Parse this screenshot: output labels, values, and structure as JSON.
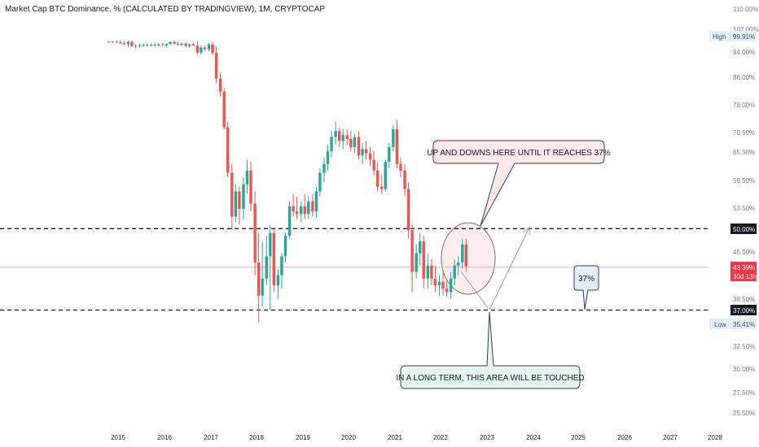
{
  "chart_title": "Market Cap BTC Dominance, % (CALCULATED BY TRADINGVIEW), 1M, CRYPTOCAP",
  "colors": {
    "up": "#26a69a",
    "down": "#ef5350",
    "last_price": "#f23645",
    "axis_text": "#787b86",
    "note_pink_bg": "#fde8ea",
    "note_green_bg": "#e7f5ef",
    "note_blue_bg": "#e3effc"
  },
  "price_axis": {
    "labels": [
      "110.00%",
      "102.00%",
      "94.00%",
      "86.00%",
      "78.00%",
      "70.50%",
      "65.50%",
      "59.50%",
      "53.50%",
      "45.50%",
      "38.50%",
      "32.50%",
      "30.00%",
      "27.50%",
      "25.50%"
    ],
    "high_label": "High",
    "high_value": "99.91%",
    "low_label": "Low",
    "low_value": "35.41%",
    "level_50": "50.00%",
    "level_37": "37.00%",
    "last_value": "43.39%",
    "last_countdown": "30d 13h"
  },
  "time_axis": {
    "labels": [
      "2015",
      "2016",
      "2017",
      "2018",
      "2019",
      "2020",
      "2021",
      "2022",
      "2023",
      "2024",
      "2025",
      "2026",
      "2027",
      "2028"
    ]
  },
  "annotations": {
    "top_callout": "UP AND DOWNS HERE UNTIL IT REACHES 37%",
    "bottom_callout": "IN A LONG TERM, THIS AREA WILL BE TOUCHED",
    "target_callout": "37%"
  },
  "chart_data": {
    "type": "candlestick",
    "title": "Market Cap BTC Dominance, % (CALCULATED BY TRADINGVIEW), 1M, CRYPTOCAP",
    "y_unit": "%",
    "y_scale": "log",
    "ylim": [
      24,
      112
    ],
    "xlim": [
      2014.0,
      2028.3
    ],
    "interval": "1M",
    "horizontal_levels": [
      50.0,
      37.0
    ],
    "last_price": 43.39,
    "high": 99.91,
    "low": 35.41,
    "candles": [
      {
        "t": 2014.8,
        "o": 98.3,
        "h": 98.6,
        "l": 98.0,
        "c": 98.3
      },
      {
        "t": 2014.88,
        "o": 98.3,
        "h": 98.6,
        "l": 98.0,
        "c": 98.3
      },
      {
        "t": 2014.97,
        "o": 98.3,
        "h": 98.8,
        "l": 97.8,
        "c": 98.2
      },
      {
        "t": 2015.05,
        "o": 98.2,
        "h": 98.9,
        "l": 97.5,
        "c": 97.8
      },
      {
        "t": 2015.13,
        "o": 97.8,
        "h": 98.6,
        "l": 97.0,
        "c": 97.6
      },
      {
        "t": 2015.22,
        "o": 97.6,
        "h": 98.7,
        "l": 96.5,
        "c": 98.3
      },
      {
        "t": 2015.3,
        "o": 98.3,
        "h": 98.8,
        "l": 96.6,
        "c": 96.8
      },
      {
        "t": 2015.38,
        "o": 96.8,
        "h": 97.5,
        "l": 96.0,
        "c": 96.9
      },
      {
        "t": 2015.47,
        "o": 96.9,
        "h": 97.6,
        "l": 96.3,
        "c": 97.1
      },
      {
        "t": 2015.55,
        "o": 97.1,
        "h": 97.8,
        "l": 96.5,
        "c": 97.2
      },
      {
        "t": 2015.63,
        "o": 97.2,
        "h": 97.8,
        "l": 96.6,
        "c": 97.0
      },
      {
        "t": 2015.72,
        "o": 97.0,
        "h": 97.7,
        "l": 96.6,
        "c": 97.3
      },
      {
        "t": 2015.8,
        "o": 97.3,
        "h": 97.9,
        "l": 96.8,
        "c": 97.0
      },
      {
        "t": 2015.88,
        "o": 97.0,
        "h": 97.8,
        "l": 96.6,
        "c": 97.4
      },
      {
        "t": 2015.97,
        "o": 97.4,
        "h": 98.0,
        "l": 96.9,
        "c": 97.1
      },
      {
        "t": 2016.05,
        "o": 97.1,
        "h": 97.8,
        "l": 96.7,
        "c": 97.6
      },
      {
        "t": 2016.13,
        "o": 97.6,
        "h": 98.6,
        "l": 97.1,
        "c": 98.2
      },
      {
        "t": 2016.22,
        "o": 98.2,
        "h": 98.8,
        "l": 97.4,
        "c": 97.6
      },
      {
        "t": 2016.3,
        "o": 97.6,
        "h": 98.3,
        "l": 97.0,
        "c": 97.2
      },
      {
        "t": 2016.38,
        "o": 97.2,
        "h": 98.0,
        "l": 96.8,
        "c": 97.7
      },
      {
        "t": 2016.47,
        "o": 97.7,
        "h": 98.2,
        "l": 96.5,
        "c": 96.8
      },
      {
        "t": 2016.55,
        "o": 96.8,
        "h": 97.6,
        "l": 96.2,
        "c": 97.4
      },
      {
        "t": 2016.63,
        "o": 97.4,
        "h": 98.1,
        "l": 96.8,
        "c": 97.0
      },
      {
        "t": 2016.72,
        "o": 97.0,
        "h": 98.6,
        "l": 93.8,
        "c": 94.5
      },
      {
        "t": 2016.8,
        "o": 94.5,
        "h": 97.0,
        "l": 94.0,
        "c": 96.3
      },
      {
        "t": 2016.88,
        "o": 96.3,
        "h": 97.1,
        "l": 95.2,
        "c": 95.7
      },
      {
        "t": 2016.97,
        "o": 95.7,
        "h": 98.0,
        "l": 95.0,
        "c": 97.4
      },
      {
        "t": 2017.05,
        "o": 97.4,
        "h": 98.2,
        "l": 93.8,
        "c": 94.4
      },
      {
        "t": 2017.13,
        "o": 94.4,
        "h": 96.7,
        "l": 84.5,
        "c": 86.0
      },
      {
        "t": 2017.22,
        "o": 86.0,
        "h": 88.0,
        "l": 80.5,
        "c": 82.0
      },
      {
        "t": 2017.3,
        "o": 82.0,
        "h": 83.0,
        "l": 71.5,
        "c": 72.0
      },
      {
        "t": 2017.38,
        "o": 72.0,
        "h": 73.5,
        "l": 60.0,
        "c": 61.0
      },
      {
        "t": 2017.47,
        "o": 61.0,
        "h": 63.0,
        "l": 49.5,
        "c": 52.0
      },
      {
        "t": 2017.55,
        "o": 52.0,
        "h": 58.5,
        "l": 51.0,
        "c": 57.0
      },
      {
        "t": 2017.63,
        "o": 57.0,
        "h": 58.0,
        "l": 50.5,
        "c": 53.5
      },
      {
        "t": 2017.72,
        "o": 53.5,
        "h": 60.0,
        "l": 51.5,
        "c": 58.5
      },
      {
        "t": 2017.8,
        "o": 58.5,
        "h": 64.0,
        "l": 56.5,
        "c": 61.5
      },
      {
        "t": 2017.88,
        "o": 61.5,
        "h": 63.5,
        "l": 53.0,
        "c": 54.5
      },
      {
        "t": 2017.97,
        "o": 54.5,
        "h": 57.0,
        "l": 42.0,
        "c": 44.0
      },
      {
        "t": 2018.05,
        "o": 44.0,
        "h": 49.0,
        "l": 35.41,
        "c": 39.0
      },
      {
        "t": 2018.13,
        "o": 39.0,
        "h": 47.5,
        "l": 37.5,
        "c": 41.5
      },
      {
        "t": 2018.22,
        "o": 41.5,
        "h": 48.5,
        "l": 40.5,
        "c": 45.0
      },
      {
        "t": 2018.3,
        "o": 45.0,
        "h": 50.5,
        "l": 37.0,
        "c": 49.0
      },
      {
        "t": 2018.38,
        "o": 49.0,
        "h": 50.0,
        "l": 39.5,
        "c": 40.5
      },
      {
        "t": 2018.47,
        "o": 40.5,
        "h": 43.0,
        "l": 38.5,
        "c": 42.0
      },
      {
        "t": 2018.55,
        "o": 42.0,
        "h": 45.5,
        "l": 40.0,
        "c": 45.0
      },
      {
        "t": 2018.63,
        "o": 45.0,
        "h": 49.0,
        "l": 44.0,
        "c": 48.5
      },
      {
        "t": 2018.72,
        "o": 48.5,
        "h": 55.0,
        "l": 48.0,
        "c": 54.0
      },
      {
        "t": 2018.8,
        "o": 54.0,
        "h": 56.5,
        "l": 52.0,
        "c": 53.0
      },
      {
        "t": 2018.88,
        "o": 53.0,
        "h": 56.0,
        "l": 51.5,
        "c": 52.5
      },
      {
        "t": 2018.97,
        "o": 52.5,
        "h": 55.0,
        "l": 51.0,
        "c": 54.0
      },
      {
        "t": 2019.05,
        "o": 54.0,
        "h": 56.5,
        "l": 51.5,
        "c": 52.5
      },
      {
        "t": 2019.13,
        "o": 52.5,
        "h": 56.0,
        "l": 51.5,
        "c": 55.0
      },
      {
        "t": 2019.22,
        "o": 55.0,
        "h": 56.5,
        "l": 52.0,
        "c": 53.0
      },
      {
        "t": 2019.3,
        "o": 53.0,
        "h": 58.0,
        "l": 51.8,
        "c": 57.0
      },
      {
        "t": 2019.38,
        "o": 57.0,
        "h": 62.0,
        "l": 56.0,
        "c": 61.0
      },
      {
        "t": 2019.47,
        "o": 61.0,
        "h": 64.5,
        "l": 59.0,
        "c": 63.0
      },
      {
        "t": 2019.55,
        "o": 63.0,
        "h": 67.5,
        "l": 61.5,
        "c": 66.0
      },
      {
        "t": 2019.63,
        "o": 66.0,
        "h": 71.0,
        "l": 64.5,
        "c": 69.5
      },
      {
        "t": 2019.72,
        "o": 69.5,
        "h": 73.5,
        "l": 67.5,
        "c": 71.0
      },
      {
        "t": 2019.8,
        "o": 71.0,
        "h": 72.0,
        "l": 67.0,
        "c": 68.5
      },
      {
        "t": 2019.88,
        "o": 68.5,
        "h": 71.5,
        "l": 66.5,
        "c": 70.0
      },
      {
        "t": 2019.97,
        "o": 70.0,
        "h": 71.5,
        "l": 67.5,
        "c": 69.0
      },
      {
        "t": 2020.05,
        "o": 69.0,
        "h": 71.0,
        "l": 66.0,
        "c": 67.0
      },
      {
        "t": 2020.13,
        "o": 67.0,
        "h": 70.5,
        "l": 65.5,
        "c": 69.5
      },
      {
        "t": 2020.22,
        "o": 69.5,
        "h": 71.0,
        "l": 64.0,
        "c": 65.0
      },
      {
        "t": 2020.3,
        "o": 65.0,
        "h": 68.0,
        "l": 63.0,
        "c": 66.5
      },
      {
        "t": 2020.38,
        "o": 66.5,
        "h": 68.5,
        "l": 64.0,
        "c": 65.5
      },
      {
        "t": 2020.47,
        "o": 65.5,
        "h": 67.0,
        "l": 62.5,
        "c": 64.0
      },
      {
        "t": 2020.55,
        "o": 64.0,
        "h": 66.0,
        "l": 60.5,
        "c": 61.5
      },
      {
        "t": 2020.63,
        "o": 61.5,
        "h": 63.5,
        "l": 57.0,
        "c": 58.0
      },
      {
        "t": 2020.72,
        "o": 58.0,
        "h": 60.5,
        "l": 56.5,
        "c": 57.5
      },
      {
        "t": 2020.8,
        "o": 57.5,
        "h": 64.0,
        "l": 57.0,
        "c": 63.5
      },
      {
        "t": 2020.88,
        "o": 63.5,
        "h": 68.0,
        "l": 62.0,
        "c": 67.0
      },
      {
        "t": 2020.97,
        "o": 67.0,
        "h": 72.5,
        "l": 66.0,
        "c": 71.5
      },
      {
        "t": 2021.05,
        "o": 71.5,
        "h": 74.0,
        "l": 62.0,
        "c": 63.0
      },
      {
        "t": 2021.13,
        "o": 63.0,
        "h": 64.5,
        "l": 60.0,
        "c": 61.5
      },
      {
        "t": 2021.22,
        "o": 61.5,
        "h": 63.0,
        "l": 56.0,
        "c": 57.5
      },
      {
        "t": 2021.3,
        "o": 57.5,
        "h": 59.0,
        "l": 48.0,
        "c": 49.5
      },
      {
        "t": 2021.38,
        "o": 49.5,
        "h": 50.5,
        "l": 39.5,
        "c": 42.5
      },
      {
        "t": 2021.47,
        "o": 42.5,
        "h": 47.0,
        "l": 41.5,
        "c": 45.5
      },
      {
        "t": 2021.55,
        "o": 45.5,
        "h": 49.0,
        "l": 43.5,
        "c": 47.5
      },
      {
        "t": 2021.63,
        "o": 47.5,
        "h": 48.5,
        "l": 40.0,
        "c": 41.5
      },
      {
        "t": 2021.72,
        "o": 41.5,
        "h": 45.5,
        "l": 40.0,
        "c": 43.5
      },
      {
        "t": 2021.8,
        "o": 43.5,
        "h": 44.5,
        "l": 40.5,
        "c": 41.5
      },
      {
        "t": 2021.88,
        "o": 41.5,
        "h": 43.5,
        "l": 39.5,
        "c": 40.5
      },
      {
        "t": 2021.97,
        "o": 40.5,
        "h": 42.0,
        "l": 39.0,
        "c": 41.0
      },
      {
        "t": 2022.05,
        "o": 41.0,
        "h": 42.5,
        "l": 39.0,
        "c": 40.0
      },
      {
        "t": 2022.13,
        "o": 40.0,
        "h": 41.5,
        "l": 38.8,
        "c": 39.5
      },
      {
        "t": 2022.22,
        "o": 39.5,
        "h": 42.5,
        "l": 38.5,
        "c": 41.5
      },
      {
        "t": 2022.3,
        "o": 41.5,
        "h": 44.5,
        "l": 40.5,
        "c": 43.5
      },
      {
        "t": 2022.38,
        "o": 43.5,
        "h": 45.0,
        "l": 42.0,
        "c": 44.0
      },
      {
        "t": 2022.47,
        "o": 44.0,
        "h": 48.0,
        "l": 43.0,
        "c": 47.0
      },
      {
        "t": 2022.55,
        "o": 47.0,
        "h": 48.0,
        "l": 42.5,
        "c": 43.39
      }
    ]
  }
}
